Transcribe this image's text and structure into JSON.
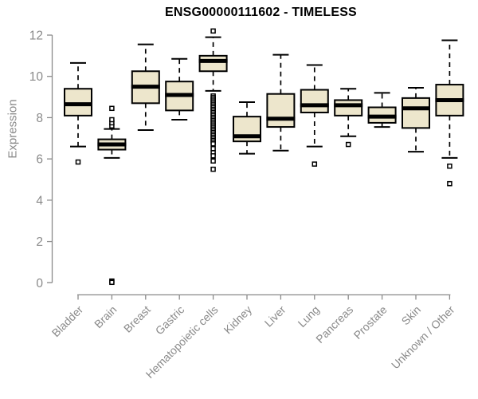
{
  "colors": {
    "box_fill": "#ede6cc",
    "box_stroke": "#000000",
    "median": "#000000",
    "outlier_fill": "#ffffff",
    "axis": "#8a8a8a",
    "title": "#000000"
  },
  "chart_data": {
    "type": "boxplot",
    "title": "ENSG00000111602 - TIMELESS",
    "xlabel": "",
    "ylabel": "Expression",
    "ylim": [
      0,
      12
    ],
    "yticks": [
      0,
      2,
      4,
      6,
      8,
      10,
      12
    ],
    "grid": false,
    "categories": [
      "Bladder",
      "Brain",
      "Breast",
      "Gastric",
      "Hematopoietic cells",
      "Kidney",
      "Liver",
      "Lung",
      "Pancreas",
      "Prostate",
      "Skin",
      "Unknown / Other"
    ],
    "series": [
      {
        "name": "Bladder",
        "low": 6.6,
        "q1": 8.1,
        "median": 8.65,
        "q3": 9.4,
        "high": 10.65,
        "outliers": [
          5.85
        ]
      },
      {
        "name": "Brain",
        "low": 6.05,
        "q1": 6.45,
        "median": 6.7,
        "q3": 6.95,
        "high": 7.45,
        "outliers": [
          7.6,
          7.75,
          7.9,
          8.45,
          0.08,
          0.02
        ]
      },
      {
        "name": "Breast",
        "low": 7.4,
        "q1": 8.7,
        "median": 9.5,
        "q3": 10.25,
        "high": 11.55,
        "outliers": []
      },
      {
        "name": "Gastric",
        "low": 7.9,
        "q1": 8.35,
        "median": 9.1,
        "q3": 9.75,
        "high": 10.85,
        "outliers": []
      },
      {
        "name": "Hematopoietic cells",
        "low": 9.3,
        "q1": 10.25,
        "median": 10.75,
        "q3": 11.0,
        "high": 11.9,
        "outliers": [
          12.2,
          9.05,
          8.97,
          8.89,
          8.81,
          8.73,
          8.65,
          8.57,
          8.49,
          8.41,
          8.33,
          8.25,
          8.17,
          8.09,
          8.01,
          7.93,
          7.85,
          7.77,
          7.69,
          7.61,
          7.53,
          7.45,
          7.37,
          7.29,
          7.21,
          7.13,
          7.05,
          6.97,
          6.89,
          6.81,
          6.73,
          6.5,
          6.3,
          6.15,
          5.9,
          5.5
        ]
      },
      {
        "name": "Kidney",
        "low": 6.25,
        "q1": 6.85,
        "median": 7.1,
        "q3": 8.05,
        "high": 8.75,
        "outliers": []
      },
      {
        "name": "Liver",
        "low": 6.4,
        "q1": 7.55,
        "median": 7.95,
        "q3": 9.15,
        "high": 11.05,
        "outliers": []
      },
      {
        "name": "Lung",
        "low": 6.6,
        "q1": 8.25,
        "median": 8.6,
        "q3": 9.35,
        "high": 10.55,
        "outliers": [
          5.75
        ]
      },
      {
        "name": "Pancreas",
        "low": 7.1,
        "q1": 8.1,
        "median": 8.6,
        "q3": 8.85,
        "high": 9.4,
        "outliers": [
          6.7
        ]
      },
      {
        "name": "Prostate",
        "low": 7.55,
        "q1": 7.75,
        "median": 8.05,
        "q3": 8.5,
        "high": 9.2,
        "outliers": []
      },
      {
        "name": "Skin",
        "low": 6.35,
        "q1": 7.5,
        "median": 8.45,
        "q3": 8.95,
        "high": 9.45,
        "outliers": []
      },
      {
        "name": "Unknown / Other",
        "low": 6.05,
        "q1": 8.1,
        "median": 8.85,
        "q3": 9.6,
        "high": 11.75,
        "outliers": [
          5.65,
          4.8
        ]
      }
    ]
  }
}
